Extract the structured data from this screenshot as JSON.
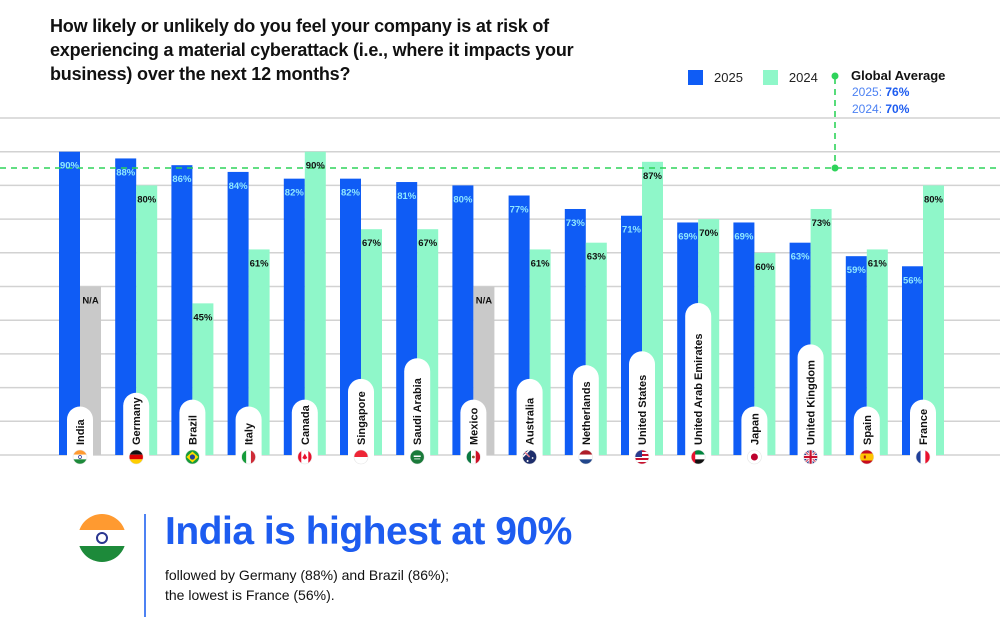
{
  "title": "How likely or unlikely do you feel your company is at risk of experiencing a material cyberattack (i.e., where it impacts your business) over the next 12 months?",
  "legend": {
    "items": [
      {
        "label": "2025",
        "color": "#0f5cf5"
      },
      {
        "label": "2024",
        "color": "#8ff7c9"
      }
    ],
    "global_average": {
      "title": "Global Average",
      "rows": [
        {
          "label": "2025:",
          "value": "76%"
        },
        {
          "label": "2024:",
          "value": "70%"
        }
      ],
      "color": "#2ed35a"
    }
  },
  "chart_data": {
    "type": "bar",
    "title": "How likely or unlikely do you feel your company is at risk of experiencing a material cyberattack (i.e., where it impacts your business) over the next 12 months?",
    "xlabel": "",
    "ylabel": "",
    "ylim": [
      0,
      100
    ],
    "grid": true,
    "legend_position": "top-right",
    "categories": [
      "India",
      "Germany",
      "Brazil",
      "Italy",
      "Canada",
      "Singapore",
      "Saudi Arabia",
      "Mexico",
      "Australia",
      "Netherlands",
      "United States",
      "United Arab Emirates",
      "Japan",
      "United Kingdom",
      "Spain",
      "France"
    ],
    "flags": [
      "india-flag",
      "germany-flag",
      "brazil-flag",
      "italy-flag",
      "canada-flag",
      "singapore-flag",
      "saudi-arabia-flag",
      "mexico-flag",
      "australia-flag",
      "netherlands-flag",
      "united-states-flag",
      "uae-flag",
      "japan-flag",
      "united-kingdom-flag",
      "spain-flag",
      "france-flag"
    ],
    "series": [
      {
        "name": "2025",
        "color": "#0f5cf5",
        "values": [
          90,
          88,
          86,
          84,
          82,
          82,
          81,
          80,
          77,
          73,
          71,
          69,
          69,
          63,
          59,
          56
        ]
      },
      {
        "name": "2024",
        "color": "#8ff7c9",
        "values": [
          null,
          80,
          45,
          61,
          90,
          67,
          67,
          null,
          61,
          63,
          87,
          70,
          60,
          73,
          61,
          80
        ]
      }
    ],
    "missing_label": "N/A",
    "missing_color": "#c9c9c9",
    "reference_line": {
      "label": "Global Average",
      "values": {
        "2025": 76,
        "2024": 70
      }
    }
  },
  "callout": {
    "headline": "India is highest at 90%",
    "body_line1": "followed by Germany (88%) and Brazil (86%);",
    "body_line2": "the lowest is France (56%)."
  }
}
